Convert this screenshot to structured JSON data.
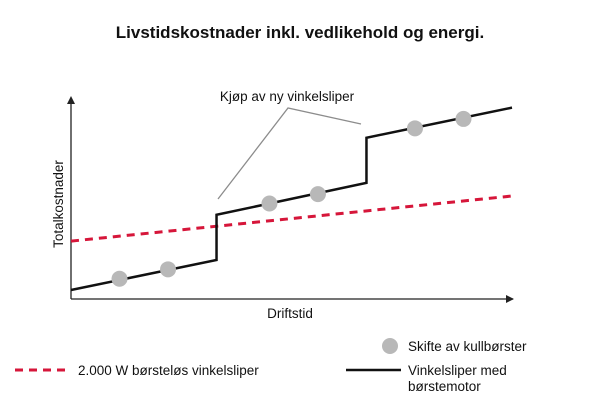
{
  "chart_data": {
    "type": "line",
    "title": "Livstidskostnader inkl. vedlikehold og energi.",
    "xlabel": "Driftstid",
    "ylabel": "Totalkostnader",
    "annotation": "Kjøp av ny vinkelsliper",
    "grid": false,
    "xlim": [
      0,
      100
    ],
    "ylim": [
      0,
      100
    ],
    "series": [
      {
        "name": "2.000 W børsteløs vinkelsliper",
        "style": "dashed",
        "color": "#d6163a",
        "x": [
          0,
          100
        ],
        "y": [
          26,
          50
        ]
      },
      {
        "name": "Vinkelsliper med børstemotor",
        "style": "solid",
        "color": "#111111",
        "x": [
          0,
          33,
          33,
          67,
          67,
          100
        ],
        "y": [
          0,
          16,
          40,
          57,
          81,
          97
        ]
      }
    ],
    "markers": {
      "name": "Skifte av kullbørster",
      "color": "#b8b8b8",
      "x": [
        11,
        22,
        45,
        56,
        78,
        89
      ],
      "y": [
        6,
        11,
        46,
        51,
        86,
        91
      ]
    },
    "legend_placement": "bottom"
  }
}
